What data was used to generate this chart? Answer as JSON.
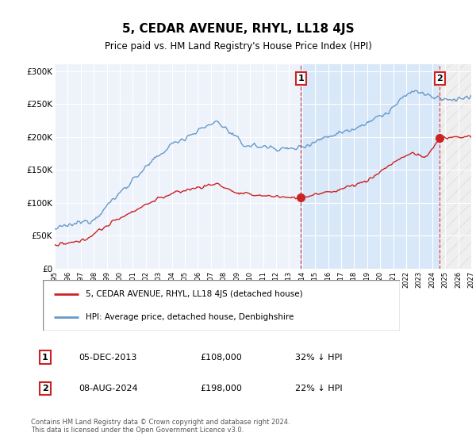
{
  "title": "5, CEDAR AVENUE, RHYL, LL18 4JS",
  "subtitle": "Price paid vs. HM Land Registry's House Price Index (HPI)",
  "hpi_color": "#6699cc",
  "price_color": "#cc2222",
  "plot_bg": "#eef3fb",
  "highlight_color": "#d8e8f8",
  "ylim": [
    0,
    310000
  ],
  "yticks": [
    0,
    50000,
    100000,
    150000,
    200000,
    250000,
    300000
  ],
  "ytick_labels": [
    "£0",
    "£50K",
    "£100K",
    "£150K",
    "£200K",
    "£250K",
    "£300K"
  ],
  "legend_entries": [
    "5, CEDAR AVENUE, RHYL, LL18 4JS (detached house)",
    "HPI: Average price, detached house, Denbighshire"
  ],
  "sale1_label": "1",
  "sale1_date": "05-DEC-2013",
  "sale1_price": "£108,000",
  "sale1_hpi": "32% ↓ HPI",
  "sale1_x": 2013.92,
  "sale1_y": 108000,
  "sale2_label": "2",
  "sale2_date": "08-AUG-2024",
  "sale2_price": "£198,000",
  "sale2_hpi": "22% ↓ HPI",
  "sale2_x": 2024.58,
  "sale2_y": 198000,
  "vline1_x": 2013.92,
  "vline2_x": 2024.58,
  "footer": "Contains HM Land Registry data © Crown copyright and database right 2024.\nThis data is licensed under the Open Government Licence v3.0.",
  "xmin": 1995.0,
  "xmax": 2027.0
}
